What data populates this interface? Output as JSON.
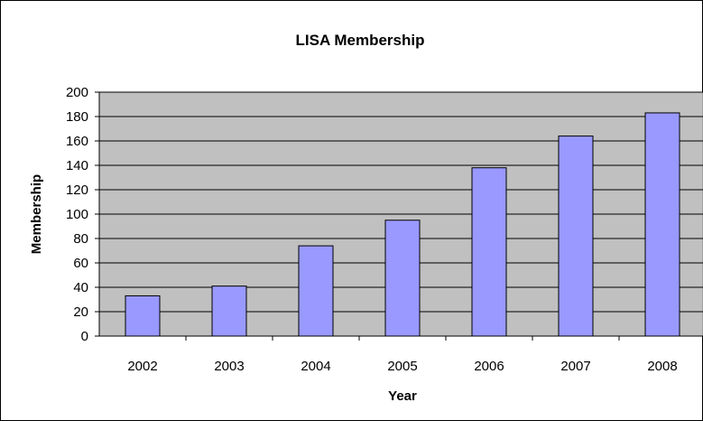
{
  "chart_data": {
    "type": "bar",
    "title": "LISA Membership",
    "xlabel": "Year",
    "ylabel": "Membership",
    "categories": [
      "2002",
      "2003",
      "2004",
      "2005",
      "2006",
      "2007",
      "2008"
    ],
    "values": [
      33,
      41,
      74,
      95,
      138,
      164,
      183
    ],
    "ylim": [
      0,
      200
    ],
    "yticks": [
      "0",
      "20",
      "40",
      "60",
      "80",
      "100",
      "120",
      "140",
      "160",
      "180",
      "200"
    ],
    "grid": true,
    "legend": "none"
  },
  "colors": {
    "plot_background": "#c0c0c0",
    "bar_fill": "#9999ff",
    "bar_stroke": "#000000",
    "gridline": "#000000"
  }
}
